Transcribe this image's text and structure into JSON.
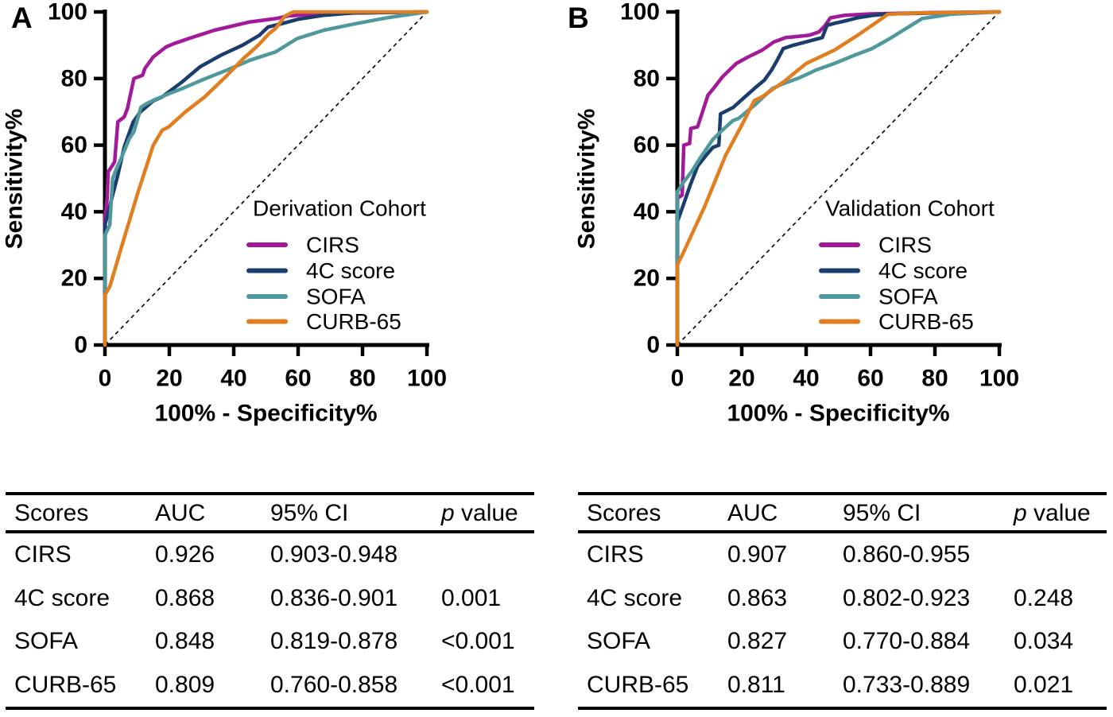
{
  "figure": {
    "panels": [
      {
        "label": "A",
        "legend_title": "Derivation Cohort",
        "xlabel": "100% - Specificity%",
        "ylabel": "Sensitivity%",
        "x_ticks": [
          0,
          20,
          40,
          60,
          80,
          100
        ],
        "y_ticks": [
          0,
          20,
          40,
          60,
          80,
          100
        ],
        "chart_data": {
          "type": "line",
          "title": "Derivation Cohort",
          "xlabel": "100% - Specificity%",
          "ylabel": "Sensitivity%",
          "xlim": [
            0,
            100
          ],
          "ylim": [
            0,
            100
          ],
          "grid": false,
          "legend_position": "inside-lower-right",
          "diagonal_reference_line": true,
          "series": [
            {
              "name": "CIRS",
              "color": "#A21A9A",
              "points": [
                [
                  0,
                  0
                ],
                [
                  0,
                  38
                ],
                [
                  0.7,
                  44
                ],
                [
                  1,
                  52
                ],
                [
                  2.4,
                  54
                ],
                [
                  3,
                  55
                ],
                [
                  4,
                  67
                ],
                [
                  6,
                  68.5
                ],
                [
                  7,
                  71
                ],
                [
                  9,
                  80
                ],
                [
                  11.7,
                  81
                ],
                [
                  12.4,
                  83
                ],
                [
                  15,
                  86.5
                ],
                [
                  19,
                  89.5
                ],
                [
                  21.5,
                  90.5
                ],
                [
                  26,
                  92
                ],
                [
                  34,
                  94.5
                ],
                [
                  45,
                  97
                ],
                [
                  53,
                  98
                ],
                [
                  57,
                  98.8
                ],
                [
                  70,
                  99.6
                ],
                [
                  100,
                  100
                ]
              ]
            },
            {
              "name": "4C score",
              "color": "#1B3D6D",
              "points": [
                [
                  0,
                  0
                ],
                [
                  0,
                  36
                ],
                [
                  2,
                  43.5
                ],
                [
                  4,
                  51
                ],
                [
                  6,
                  59.5
                ],
                [
                  8.8,
                  67
                ],
                [
                  11,
                  70
                ],
                [
                  15,
                  73.3
                ],
                [
                  17.8,
                  74.5
                ],
                [
                  24,
                  79
                ],
                [
                  29.5,
                  83.5
                ],
                [
                  36,
                  87
                ],
                [
                  42.7,
                  90
                ],
                [
                  48,
                  93
                ],
                [
                  50.7,
                  95.5
                ],
                [
                  55,
                  96.5
                ],
                [
                  60,
                  97.8
                ],
                [
                  68,
                  99
                ],
                [
                  77,
                  99.7
                ],
                [
                  100,
                  100
                ]
              ]
            },
            {
              "name": "SOFA",
              "color": "#4F989B",
              "points": [
                [
                  0,
                  0
                ],
                [
                  0,
                  33
                ],
                [
                  1.5,
                  36
                ],
                [
                  2.4,
                  50
                ],
                [
                  3.6,
                  53
                ],
                [
                  5,
                  56
                ],
                [
                  7.6,
                  62
                ],
                [
                  9,
                  64
                ],
                [
                  11.2,
                  71.4
                ],
                [
                  13,
                  72.5
                ],
                [
                  15.8,
                  73.8
                ],
                [
                  20,
                  75.5
                ],
                [
                  24,
                  77
                ],
                [
                  30,
                  79.5
                ],
                [
                  37.8,
                  82.5
                ],
                [
                  45,
                  85.5
                ],
                [
                  53,
                  88
                ],
                [
                  59.7,
                  92
                ],
                [
                  68,
                  94.5
                ],
                [
                  78,
                  96.5
                ],
                [
                  88,
                  98.3
                ],
                [
                  100,
                  100
                ]
              ]
            },
            {
              "name": "CURB-65",
              "color": "#E07E20",
              "points": [
                [
                  0,
                  0
                ],
                [
                  0,
                  15
                ],
                [
                  1.5,
                  17.5
                ],
                [
                  5,
                  29
                ],
                [
                  10,
                  45
                ],
                [
                  15,
                  60
                ],
                [
                  17.8,
                  64.5
                ],
                [
                  19.8,
                  65.5
                ],
                [
                  25,
                  70
                ],
                [
                  31,
                  74.5
                ],
                [
                  38,
                  81
                ],
                [
                  43,
                  86
                ],
                [
                  47.6,
                  90
                ],
                [
                  51,
                  93.5
                ],
                [
                  53,
                  95
                ],
                [
                  56,
                  98.8
                ],
                [
                  58.5,
                  100
                ],
                [
                  100,
                  100
                ]
              ]
            }
          ]
        }
      },
      {
        "label": "B",
        "legend_title": "Validation Cohort",
        "xlabel": "100% - Specificity%",
        "ylabel": "Sensitivity%",
        "x_ticks": [
          0,
          20,
          40,
          60,
          80,
          100
        ],
        "y_ticks": [
          0,
          20,
          40,
          60,
          80,
          100
        ],
        "chart_data": {
          "type": "line",
          "title": "Validation Cohort",
          "xlabel": "100% - Specificity%",
          "ylabel": "Sensitivity%",
          "xlim": [
            0,
            100
          ],
          "ylim": [
            0,
            100
          ],
          "grid": false,
          "legend_position": "inside-lower-right",
          "diagonal_reference_line": true,
          "series": [
            {
              "name": "CIRS",
              "color": "#A21A9A",
              "points": [
                [
                  0,
                  0
                ],
                [
                  0,
                  44
                ],
                [
                  1.5,
                  45
                ],
                [
                  2,
                  60
                ],
                [
                  3.8,
                  60.5
                ],
                [
                  4.2,
                  65
                ],
                [
                  6.3,
                  65.5
                ],
                [
                  9.5,
                  75
                ],
                [
                  11.2,
                  77
                ],
                [
                  14,
                  80.5
                ],
                [
                  18.3,
                  84.5
                ],
                [
                  22,
                  86.5
                ],
                [
                  26.3,
                  88.5
                ],
                [
                  30,
                  91
                ],
                [
                  33.7,
                  92.3
                ],
                [
                  38,
                  92.7
                ],
                [
                  41,
                  93
                ],
                [
                  44,
                  94
                ],
                [
                  45.8,
                  95.8
                ],
                [
                  47.5,
                  98.2
                ],
                [
                  52,
                  99
                ],
                [
                  60,
                  99.4
                ],
                [
                  80,
                  99.8
                ],
                [
                  100,
                  100
                ]
              ]
            },
            {
              "name": "4C score",
              "color": "#1B3D6D",
              "points": [
                [
                  0,
                  0
                ],
                [
                  0,
                  37
                ],
                [
                  2,
                  42.4
                ],
                [
                  4,
                  48
                ],
                [
                  6.3,
                  53.7
                ],
                [
                  9,
                  57
                ],
                [
                  11,
                  59.3
                ],
                [
                  12.9,
                  60
                ],
                [
                  13.4,
                  69.4
                ],
                [
                  17.3,
                  71.3
                ],
                [
                  21,
                  74.5
                ],
                [
                  23.9,
                  77
                ],
                [
                  27,
                  79.5
                ],
                [
                  29.3,
                  82.6
                ],
                [
                  31,
                  85.5
                ],
                [
                  32.9,
                  89
                ],
                [
                  36,
                  90
                ],
                [
                  40,
                  91
                ],
                [
                  43,
                  91.8
                ],
                [
                  45,
                  92.3
                ],
                [
                  46.5,
                  96
                ],
                [
                  49,
                  96.6
                ],
                [
                  53,
                  97.5
                ],
                [
                  56.3,
                  98.3
                ],
                [
                  61,
                  99
                ],
                [
                  65.4,
                  99.4
                ],
                [
                  100,
                  100
                ]
              ]
            },
            {
              "name": "SOFA",
              "color": "#4F989B",
              "points": [
                [
                  0,
                  0
                ],
                [
                  0,
                  46
                ],
                [
                  2,
                  49
                ],
                [
                  4.4,
                  52
                ],
                [
                  7,
                  56
                ],
                [
                  11,
                  61.7
                ],
                [
                  14,
                  64.5
                ],
                [
                  17.3,
                  67.4
                ],
                [
                  19,
                  68
                ],
                [
                  24,
                  72
                ],
                [
                  29.5,
                  77
                ],
                [
                  33,
                  78.5
                ],
                [
                  37.8,
                  80.2
                ],
                [
                  43,
                  82.5
                ],
                [
                  49,
                  84.6
                ],
                [
                  55,
                  87
                ],
                [
                  60.5,
                  89
                ],
                [
                  66,
                  92
                ],
                [
                  71,
                  95
                ],
                [
                  76,
                  98
                ],
                [
                  85,
                  99.3
                ],
                [
                  100,
                  100
                ]
              ]
            },
            {
              "name": "CURB-65",
              "color": "#E07E20",
              "points": [
                [
                  0,
                  0
                ],
                [
                  0,
                  24
                ],
                [
                  2,
                  28
                ],
                [
                  8.5,
                  41.6
                ],
                [
                  15,
                  57
                ],
                [
                  20,
                  66
                ],
                [
                  23.9,
                  73.4
                ],
                [
                  26.3,
                  74.5
                ],
                [
                  33,
                  79
                ],
                [
                  40,
                  84.5
                ],
                [
                  48.9,
                  88.6
                ],
                [
                  56,
                  93
                ],
                [
                  62,
                  97
                ],
                [
                  65.4,
                  99.3
                ],
                [
                  75,
                  99.7
                ],
                [
                  100,
                  100
                ]
              ]
            }
          ]
        }
      }
    ],
    "tables": [
      {
        "cohort": "Derivation Cohort",
        "headers": [
          "Scores",
          "AUC",
          "95% CI"
        ],
        "p_header": {
          "italic": "p",
          "rest": " value"
        },
        "rows": [
          {
            "score": "CIRS",
            "auc": "0.926",
            "ci": "0.903-0.948",
            "p": ""
          },
          {
            "score": "4C score",
            "auc": "0.868",
            "ci": "0.836-0.901",
            "p": "0.001"
          },
          {
            "score": "SOFA",
            "auc": "0.848",
            "ci": "0.819-0.878",
            "p": "<0.001"
          },
          {
            "score": "CURB-65",
            "auc": "0.809",
            "ci": "0.760-0.858",
            "p": "<0.001"
          }
        ]
      },
      {
        "cohort": "Validation Cohort",
        "headers": [
          "Scores",
          "AUC",
          "95% CI"
        ],
        "p_header": {
          "italic": "p",
          "rest": " value"
        },
        "rows": [
          {
            "score": "CIRS",
            "auc": "0.907",
            "ci": "0.860-0.955",
            "p": ""
          },
          {
            "score": "4C score",
            "auc": "0.863",
            "ci": "0.802-0.923",
            "p": "0.248"
          },
          {
            "score": "SOFA",
            "auc": "0.827",
            "ci": "0.770-0.884",
            "p": "0.034"
          },
          {
            "score": "CURB-65",
            "auc": "0.811",
            "ci": "0.733-0.889",
            "p": "0.021"
          }
        ]
      }
    ]
  }
}
